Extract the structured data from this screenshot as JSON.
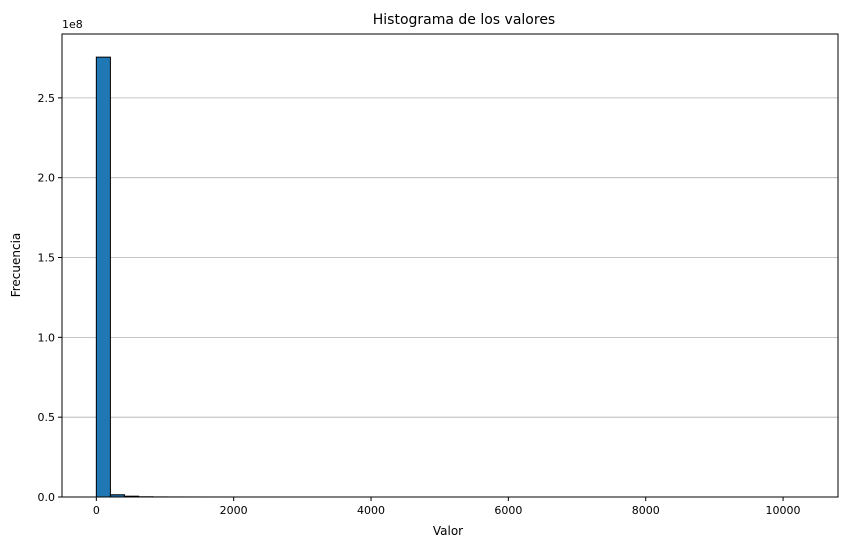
{
  "chart_data": {
    "type": "bar",
    "title": "Histograma de los valores",
    "xlabel": "Valor",
    "ylabel": "Frecuencia",
    "y_offset_label": "1e8",
    "xlim": [
      -500,
      10800
    ],
    "ylim": [
      0,
      290000000
    ],
    "x_ticks": [
      0,
      2000,
      4000,
      6000,
      8000,
      10000
    ],
    "x_tick_labels": [
      "0",
      "2000",
      "4000",
      "6000",
      "8000",
      "10000"
    ],
    "y_ticks": [
      0,
      50000000,
      100000000,
      150000000,
      200000000,
      250000000
    ],
    "y_tick_labels": [
      "0.0",
      "0.5",
      "1.0",
      "1.5",
      "2.0",
      "2.5"
    ],
    "grid": "y",
    "bar_color": "#1f77b4",
    "edge_color": "#000000",
    "bins": {
      "start": 0,
      "width": 205,
      "counts": [
        275500000,
        1400000,
        500000,
        150000,
        60000,
        30000,
        20000,
        12000,
        8000,
        5000,
        3000,
        2000,
        1500,
        1000,
        800,
        600,
        500,
        400,
        300,
        250,
        200,
        150,
        120,
        100,
        80,
        60,
        50,
        40,
        30,
        25,
        20,
        15,
        12,
        10,
        8,
        6,
        5,
        4,
        3,
        2,
        2,
        1,
        1,
        1,
        1,
        1,
        1,
        1,
        1,
        1
      ]
    }
  }
}
